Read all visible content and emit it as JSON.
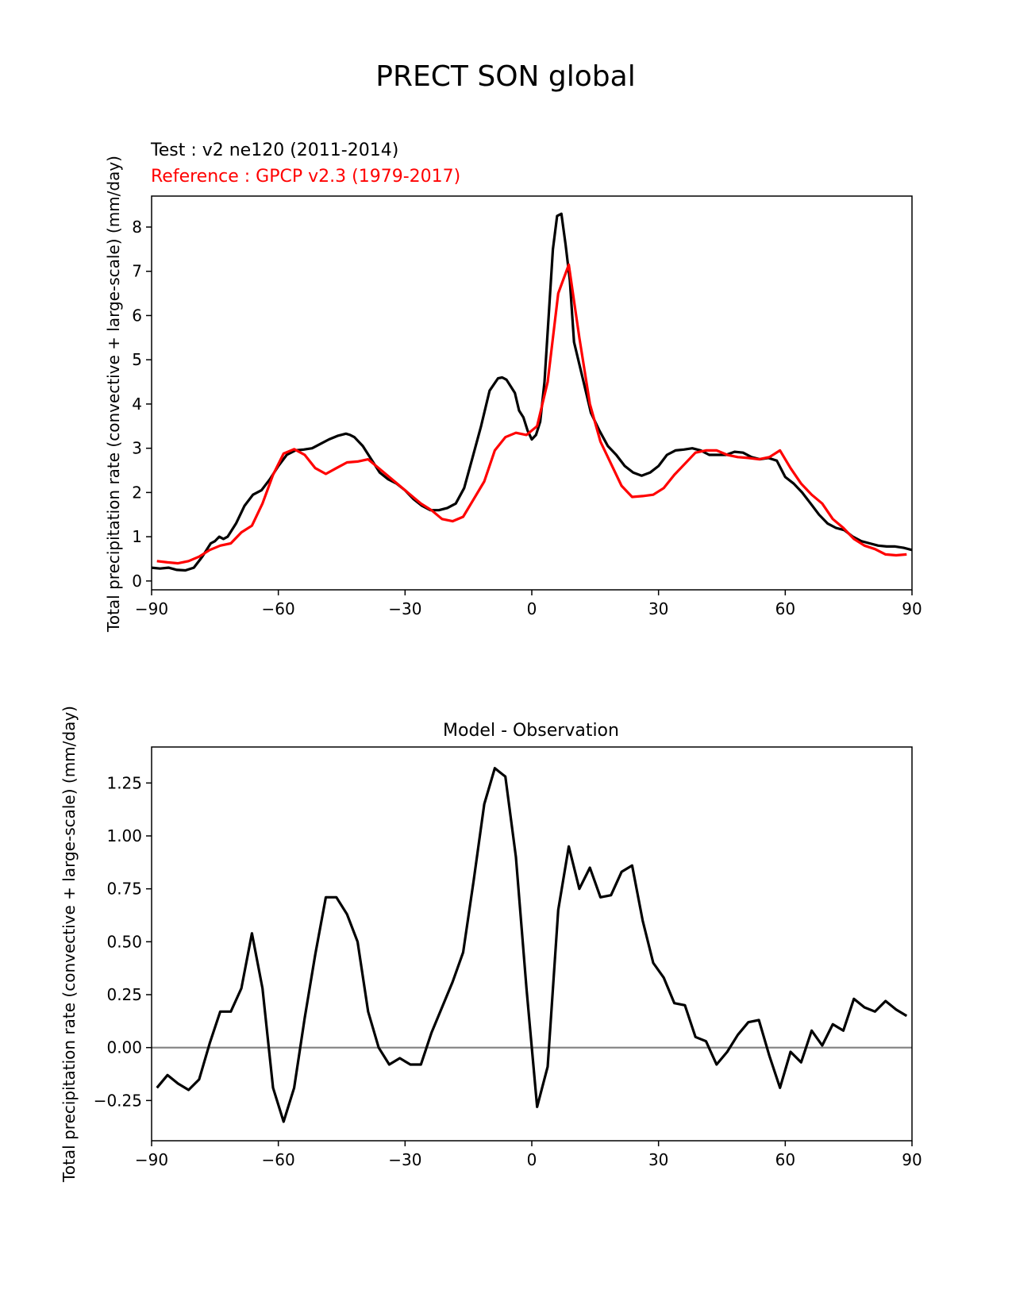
{
  "figure": {
    "title": "PRECT SON global"
  },
  "chart_data": [
    {
      "type": "line",
      "title_test": "Test : v2 ne120 (2011-2014)",
      "title_ref": "Reference : GPCP v2.3 (1979-2017)",
      "xlabel": "",
      "ylabel": "Total precipitation rate (convective + large-scale) (mm/day)",
      "xlim": [
        -90,
        90
      ],
      "ylim": [
        -0.2,
        8.7
      ],
      "xticks": [
        "−90",
        "−60",
        "−30",
        "0",
        "30",
        "60",
        "90"
      ],
      "xtick_values": [
        -90,
        -60,
        -30,
        0,
        30,
        60,
        90
      ],
      "yticks": [
        "0",
        "1",
        "2",
        "3",
        "4",
        "5",
        "6",
        "7",
        "8"
      ],
      "ytick_values": [
        0,
        1,
        2,
        3,
        4,
        5,
        6,
        7,
        8
      ],
      "grid": false,
      "series": [
        {
          "color": "#000000",
          "x": [
            -90,
            -88,
            -86,
            -84,
            -82,
            -80,
            -78,
            -76,
            -75,
            -74,
            -73,
            -72,
            -70,
            -68,
            -66,
            -64,
            -62,
            -60,
            -58,
            -56,
            -54,
            -52,
            -50,
            -48,
            -46,
            -44,
            -43,
            -42,
            -40,
            -38,
            -36,
            -34,
            -32,
            -30,
            -28,
            -26,
            -24,
            -22,
            -20,
            -18,
            -16,
            -14,
            -12,
            -10,
            -8,
            -7,
            -6,
            -5,
            -4,
            -3,
            -2,
            -1,
            0,
            1,
            2,
            3,
            4,
            5,
            6,
            7,
            8,
            9,
            10,
            12,
            14,
            16,
            18,
            20,
            22,
            24,
            26,
            28,
            30,
            32,
            34,
            36,
            38,
            40,
            42,
            44,
            46,
            48,
            50,
            52,
            54,
            56,
            58,
            60,
            62,
            64,
            66,
            68,
            70,
            72,
            74,
            76,
            78,
            80,
            82,
            84,
            86,
            88,
            90
          ],
          "values": [
            0.3,
            0.28,
            0.3,
            0.25,
            0.24,
            0.3,
            0.55,
            0.85,
            0.9,
            1.0,
            0.95,
            1.0,
            1.3,
            1.7,
            1.95,
            2.05,
            2.3,
            2.6,
            2.85,
            2.95,
            2.97,
            3.0,
            3.1,
            3.2,
            3.28,
            3.33,
            3.3,
            3.25,
            3.05,
            2.75,
            2.45,
            2.3,
            2.2,
            2.05,
            1.85,
            1.7,
            1.6,
            1.6,
            1.65,
            1.75,
            2.1,
            2.8,
            3.5,
            4.3,
            4.58,
            4.6,
            4.55,
            4.4,
            4.25,
            3.85,
            3.7,
            3.4,
            3.2,
            3.3,
            3.6,
            4.5,
            6.0,
            7.5,
            8.25,
            8.3,
            7.6,
            6.8,
            5.4,
            4.6,
            3.8,
            3.4,
            3.05,
            2.85,
            2.6,
            2.45,
            2.38,
            2.45,
            2.6,
            2.85,
            2.95,
            2.97,
            3.0,
            2.95,
            2.85,
            2.85,
            2.85,
            2.92,
            2.9,
            2.8,
            2.75,
            2.78,
            2.72,
            2.35,
            2.2,
            2.0,
            1.75,
            1.5,
            1.3,
            1.2,
            1.15,
            1.0,
            0.9,
            0.85,
            0.8,
            0.78,
            0.78,
            0.75,
            0.7
          ]
        },
        {
          "color": "#ff0000",
          "x": [
            -88.75,
            -86.25,
            -83.75,
            -81.25,
            -78.75,
            -76.25,
            -73.75,
            -71.25,
            -68.75,
            -66.25,
            -63.75,
            -61.25,
            -58.75,
            -56.25,
            -53.75,
            -51.25,
            -48.75,
            -46.25,
            -43.75,
            -41.25,
            -38.75,
            -36.25,
            -33.75,
            -31.25,
            -28.75,
            -26.25,
            -23.75,
            -21.25,
            -18.75,
            -16.25,
            -13.75,
            -11.25,
            -8.75,
            -6.25,
            -3.75,
            -1.25,
            1.25,
            3.75,
            6.25,
            8.75,
            11.25,
            13.75,
            16.25,
            18.75,
            21.25,
            23.75,
            26.25,
            28.75,
            31.25,
            33.75,
            36.25,
            38.75,
            41.25,
            43.75,
            46.25,
            48.75,
            51.25,
            53.75,
            56.25,
            58.75,
            61.25,
            63.75,
            66.25,
            68.75,
            71.25,
            73.75,
            76.25,
            78.75,
            81.25,
            83.75,
            86.25,
            88.75
          ],
          "values": [
            0.45,
            0.42,
            0.4,
            0.45,
            0.55,
            0.7,
            0.8,
            0.85,
            1.1,
            1.25,
            1.75,
            2.4,
            2.88,
            2.98,
            2.85,
            2.55,
            2.42,
            2.55,
            2.68,
            2.7,
            2.75,
            2.55,
            2.35,
            2.15,
            1.95,
            1.75,
            1.6,
            1.4,
            1.35,
            1.45,
            1.85,
            2.25,
            2.95,
            3.25,
            3.35,
            3.3,
            3.5,
            4.5,
            6.5,
            7.15,
            5.5,
            4.0,
            3.15,
            2.65,
            2.15,
            1.9,
            1.92,
            1.95,
            2.1,
            2.4,
            2.65,
            2.9,
            2.95,
            2.95,
            2.85,
            2.8,
            2.78,
            2.75,
            2.8,
            2.95,
            2.55,
            2.2,
            1.95,
            1.75,
            1.4,
            1.2,
            0.95,
            0.8,
            0.72,
            0.6,
            0.58,
            0.6
          ]
        }
      ]
    },
    {
      "type": "line",
      "title": "Model - Observation",
      "xlabel": "",
      "ylabel": "Total precipitation rate (convective + large-scale) (mm/day)",
      "xlim": [
        -90,
        90
      ],
      "ylim": [
        -0.44,
        1.42
      ],
      "xticks": [
        "−90",
        "−60",
        "−30",
        "0",
        "30",
        "60",
        "90"
      ],
      "xtick_values": [
        -90,
        -60,
        -30,
        0,
        30,
        60,
        90
      ],
      "yticks": [
        "−0.25",
        "0.00",
        "0.25",
        "0.50",
        "0.75",
        "1.00",
        "1.25"
      ],
      "ytick_values": [
        -0.25,
        0,
        0.25,
        0.5,
        0.75,
        1.0,
        1.25
      ],
      "grid": false,
      "zero_line_color": "#808080",
      "series": [
        {
          "color": "#000000",
          "x": [
            -88.75,
            -86.25,
            -83.75,
            -81.25,
            -78.75,
            -76.25,
            -73.75,
            -71.25,
            -68.75,
            -66.25,
            -63.75,
            -61.25,
            -58.75,
            -56.25,
            -53.75,
            -51.25,
            -48.75,
            -46.25,
            -43.75,
            -41.25,
            -38.75,
            -36.25,
            -33.75,
            -31.25,
            -28.75,
            -26.25,
            -23.75,
            -21.25,
            -18.75,
            -16.25,
            -13.75,
            -11.25,
            -8.75,
            -6.25,
            -3.75,
            -1.25,
            1.25,
            3.75,
            6.25,
            8.75,
            11.25,
            13.75,
            16.25,
            18.75,
            21.25,
            23.75,
            26.25,
            28.75,
            31.25,
            33.75,
            36.25,
            38.75,
            41.25,
            43.75,
            46.25,
            48.75,
            51.25,
            53.75,
            56.25,
            58.75,
            61.25,
            63.75,
            66.25,
            68.75,
            71.25,
            73.75,
            76.25,
            78.75,
            81.25,
            83.75,
            86.25,
            88.75
          ],
          "values": [
            -0.19,
            -0.13,
            -0.17,
            -0.2,
            -0.15,
            0.02,
            0.17,
            0.17,
            0.28,
            0.54,
            0.28,
            -0.19,
            -0.35,
            -0.19,
            0.14,
            0.44,
            0.71,
            0.71,
            0.63,
            0.5,
            0.17,
            0.0,
            -0.08,
            -0.05,
            -0.08,
            -0.08,
            0.07,
            0.19,
            0.31,
            0.45,
            0.79,
            1.15,
            1.32,
            1.28,
            0.9,
            0.28,
            -0.28,
            -0.09,
            0.65,
            0.95,
            0.75,
            0.85,
            0.71,
            0.72,
            0.83,
            0.86,
            0.6,
            0.4,
            0.33,
            0.21,
            0.2,
            0.05,
            0.03,
            -0.08,
            -0.02,
            0.06,
            0.12,
            0.13,
            -0.04,
            -0.19,
            -0.02,
            -0.07,
            0.08,
            0.01,
            0.11,
            0.08,
            0.23,
            0.19,
            0.17,
            0.22,
            0.18,
            0.15
          ]
        }
      ]
    }
  ]
}
